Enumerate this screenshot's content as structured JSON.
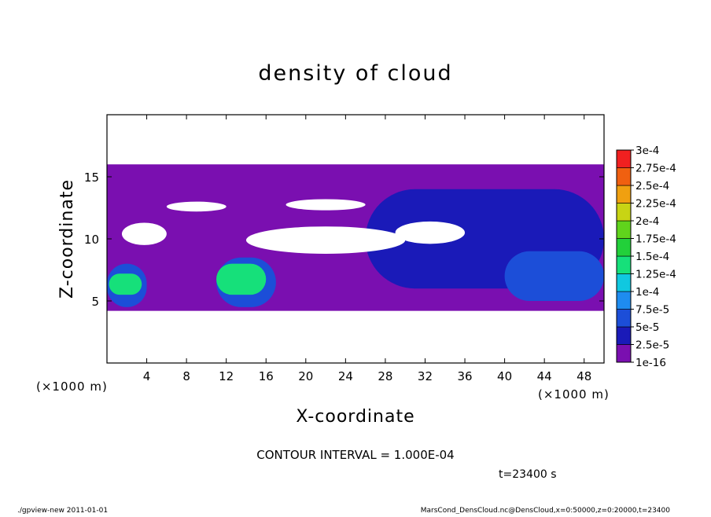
{
  "chart_data": {
    "type": "heatmap",
    "title": "density of cloud",
    "xlabel": "X-coordinate",
    "ylabel": "Z-coordinate",
    "x_unit": "(×1000 m)",
    "x_ticks": [
      4,
      8,
      12,
      16,
      20,
      24,
      28,
      32,
      36,
      40,
      44,
      48
    ],
    "y_ticks": [
      5,
      10,
      15
    ],
    "xlim": [
      0,
      50
    ],
    "ylim": [
      0,
      20
    ],
    "colorbar": {
      "labels": [
        "1e-16",
        "2.5e-5",
        "5e-5",
        "7.5e-5",
        "1e-4",
        "1.25e-4",
        "1.5e-4",
        "1.75e-4",
        "2e-4",
        "2.25e-4",
        "2.5e-4",
        "2.75e-4",
        "3e-4"
      ],
      "colors": [
        "#7a0fb0",
        "#1a1ab8",
        "#1c4ed8",
        "#1e8cf0",
        "#10c8e0",
        "#16e07a",
        "#22d03a",
        "#60d41c",
        "#c8d414",
        "#f0a010",
        "#f06010",
        "#f02020",
        "#f08080"
      ]
    },
    "annotations": {
      "contour_interval": "CONTOUR INTERVAL = 1.000E-04",
      "time": "t=23400 s"
    },
    "regions": [
      {
        "level": "1e-16",
        "desc": "main cloud layer",
        "x": [
          0,
          50
        ],
        "z": [
          4.2,
          16
        ]
      },
      {
        "level": "5e-5",
        "desc": "dense patch",
        "x": [
          0,
          4
        ],
        "z": [
          4.5,
          8
        ]
      },
      {
        "level": "1.25e-4",
        "desc": "green patch",
        "x": [
          0.2,
          3.5
        ],
        "z": [
          5.5,
          7.2
        ]
      },
      {
        "level": "5e-5",
        "desc": "dense patch",
        "x": [
          11,
          17
        ],
        "z": [
          4.5,
          8.5
        ]
      },
      {
        "level": "1.25e-4",
        "desc": "green patch",
        "x": [
          11,
          16
        ],
        "z": [
          5.5,
          8
        ]
      },
      {
        "level": "2.5e-5",
        "desc": "upper blue region",
        "x": [
          26,
          50
        ],
        "z": [
          6,
          14
        ]
      },
      {
        "level": "5e-5",
        "desc": "light blue patch",
        "x": [
          40,
          50
        ],
        "z": [
          5,
          9
        ]
      }
    ]
  },
  "footer": {
    "left": "./gpview-new  2011-01-01",
    "right": "MarsCond_DensCloud.nc@DensCloud,x=0:50000,z=0:20000,t=23400"
  }
}
